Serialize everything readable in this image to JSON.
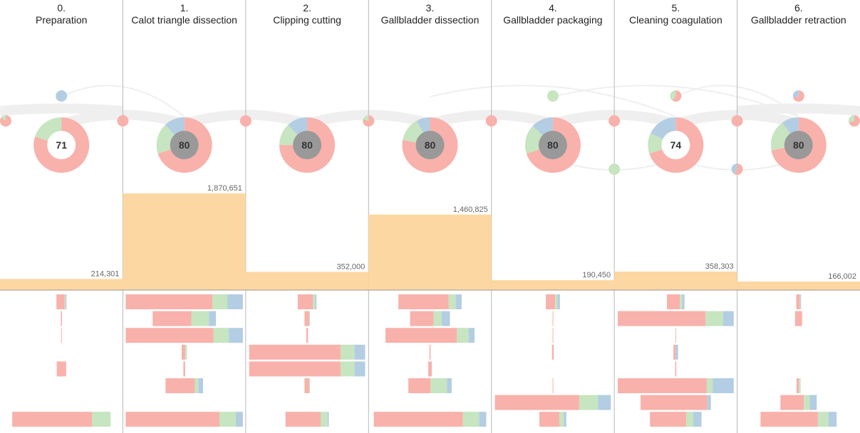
{
  "colors": {
    "red": "#f9b1ab",
    "green": "#c6e5c0",
    "blue": "#b3cde3",
    "orange": "#fdd7a1",
    "divider": "#b8b8b8",
    "arc": "#efefef",
    "score_light": "#ffffff",
    "score_dark": "#999999"
  },
  "chart_data": {
    "type": "bar",
    "phases": [
      {
        "index": "0.",
        "name": "Preparation",
        "score": 71,
        "score_style": "light",
        "volume": 214301,
        "volume_label": "214,301",
        "donut": [
          0.8,
          0.2,
          0.0
        ],
        "rows": [
          [
            0.07,
            0.01,
            0.005
          ],
          [
            0.01,
            0,
            0
          ],
          [
            0.005,
            0,
            0
          ],
          [
            0,
            0,
            0
          ],
          [
            0.08,
            0,
            0
          ],
          [
            0,
            0,
            0
          ],
          [
            0,
            0,
            0
          ],
          [
            0.68,
            0.16,
            0
          ]
        ]
      },
      {
        "index": "1.",
        "name": "Calot triangle dissection",
        "score": 80,
        "score_style": "dark",
        "volume": 1870651,
        "volume_label": "1,870,651",
        "donut": [
          0.7,
          0.18,
          0.12
        ],
        "rows": [
          [
            0.74,
            0.13,
            0.13
          ],
          [
            0.33,
            0.15,
            0.06
          ],
          [
            0.75,
            0.13,
            0.12
          ],
          [
            0.03,
            0.015,
            0
          ],
          [
            0.015,
            0,
            0
          ],
          [
            0.25,
            0.03,
            0.04
          ],
          [
            0,
            0,
            0
          ],
          [
            0.8,
            0.14,
            0.06
          ]
        ]
      },
      {
        "index": "2.",
        "name": "Clipping cutting",
        "score": 80,
        "score_style": "dark",
        "volume": 352000,
        "volume_label": "352,000",
        "donut": [
          0.75,
          0.13,
          0.12
        ],
        "rows": [
          [
            0.13,
            0.02,
            0.01
          ],
          [
            0.04,
            0.005,
            0
          ],
          [
            0.015,
            0,
            0
          ],
          [
            0.78,
            0.12,
            0.09
          ],
          [
            0.78,
            0.12,
            0.09
          ],
          [
            0.04,
            0.005,
            0
          ],
          [
            0,
            0,
            0
          ],
          [
            0.3,
            0.06,
            0.01
          ]
        ]
      },
      {
        "index": "3.",
        "name": "Gallbladder dissection",
        "score": 80,
        "score_style": "dark",
        "volume": 1460825,
        "volume_label": "1,460,825",
        "donut": [
          0.78,
          0.14,
          0.08
        ],
        "rows": [
          [
            0.43,
            0.06,
            0.05
          ],
          [
            0.2,
            0.07,
            0.07
          ],
          [
            0.61,
            0.1,
            0.05
          ],
          [
            0.01,
            0,
            0
          ],
          [
            0.03,
            0,
            0
          ],
          [
            0.19,
            0.14,
            0.04
          ],
          [
            0,
            0,
            0
          ],
          [
            0.76,
            0.14,
            0.06
          ]
        ]
      },
      {
        "index": "4.",
        "name": "Gallbladder packaging",
        "score": 80,
        "score_style": "dark",
        "volume": 190450,
        "volume_label": "190,450",
        "donut": [
          0.7,
          0.17,
          0.13
        ],
        "rows": [
          [
            0.08,
            0.02,
            0.02
          ],
          [
            0.005,
            0,
            0
          ],
          [
            0.005,
            0,
            0
          ],
          [
            0.015,
            0,
            0
          ],
          [
            0,
            0,
            0
          ],
          [
            0.005,
            0,
            0
          ],
          [
            0.72,
            0.16,
            0.11
          ],
          [
            0.17,
            0.04,
            0.02
          ]
        ]
      },
      {
        "index": "5.",
        "name": "Cleaning coagulation",
        "score": 74,
        "score_style": "light",
        "volume": 358303,
        "volume_label": "358,303",
        "donut": [
          0.7,
          0.12,
          0.18
        ],
        "rows": [
          [
            0.11,
            0.02,
            0.02
          ],
          [
            0.75,
            0.15,
            0.09
          ],
          [
            0.005,
            0,
            0
          ],
          [
            0.02,
            0,
            0.02
          ],
          [
            0.01,
            0,
            0
          ],
          [
            0.76,
            0.05,
            0.18
          ],
          [
            0.57,
            0,
            0.03
          ],
          [
            0.31,
            0.06,
            0.07
          ]
        ]
      },
      {
        "index": "6.",
        "name": "Gallbladder retraction",
        "score": 80,
        "score_style": "dark",
        "volume": 166002,
        "volume_label": "166,002",
        "donut": [
          0.72,
          0.18,
          0.1
        ],
        "rows": [
          [
            0.03,
            0.005,
            0.005
          ],
          [
            0.06,
            0,
            0
          ],
          [
            0,
            0,
            0
          ],
          [
            0,
            0,
            0
          ],
          [
            0,
            0,
            0
          ],
          [
            0.02,
            0.015,
            0
          ],
          [
            0.2,
            0.05,
            0.06
          ],
          [
            0.49,
            0.09,
            0.07
          ]
        ]
      }
    ],
    "volume_max": 1870651,
    "transition_nodes": [
      {
        "between": [
          -1,
          0
        ],
        "mix": [
          0.85,
          0.15,
          0
        ]
      },
      {
        "between": [
          0,
          1
        ],
        "mix": [
          1,
          0,
          0
        ]
      },
      {
        "between": [
          1,
          2
        ],
        "mix": [
          1,
          0,
          0
        ]
      },
      {
        "between": [
          2,
          3
        ],
        "mix": [
          0.8,
          0.2,
          0
        ]
      },
      {
        "between": [
          3,
          4
        ],
        "mix": [
          1,
          0,
          0
        ]
      },
      {
        "between": [
          4,
          5
        ],
        "mix": [
          1,
          0,
          0
        ]
      },
      {
        "between": [
          5,
          6
        ],
        "mix": [
          1,
          0,
          0
        ]
      },
      {
        "between": [
          6,
          7
        ],
        "mix": [
          0.7,
          0.3,
          0
        ]
      }
    ],
    "upper_nodes": [
      {
        "phase": 0,
        "mix": [
          0,
          0,
          1
        ]
      },
      {
        "phase": 4,
        "mix": [
          0,
          1,
          0
        ]
      },
      {
        "phase": 5,
        "mix": [
          0.6,
          0.4,
          0
        ]
      },
      {
        "phase": 6,
        "mix": [
          0.7,
          0,
          0.3
        ]
      }
    ],
    "lower_nodes": [
      {
        "at": [
          4,
          5
        ],
        "mix": [
          0,
          1,
          0
        ]
      },
      {
        "at": [
          5,
          6
        ],
        "mix": [
          0.6,
          0,
          0.4
        ]
      }
    ]
  }
}
